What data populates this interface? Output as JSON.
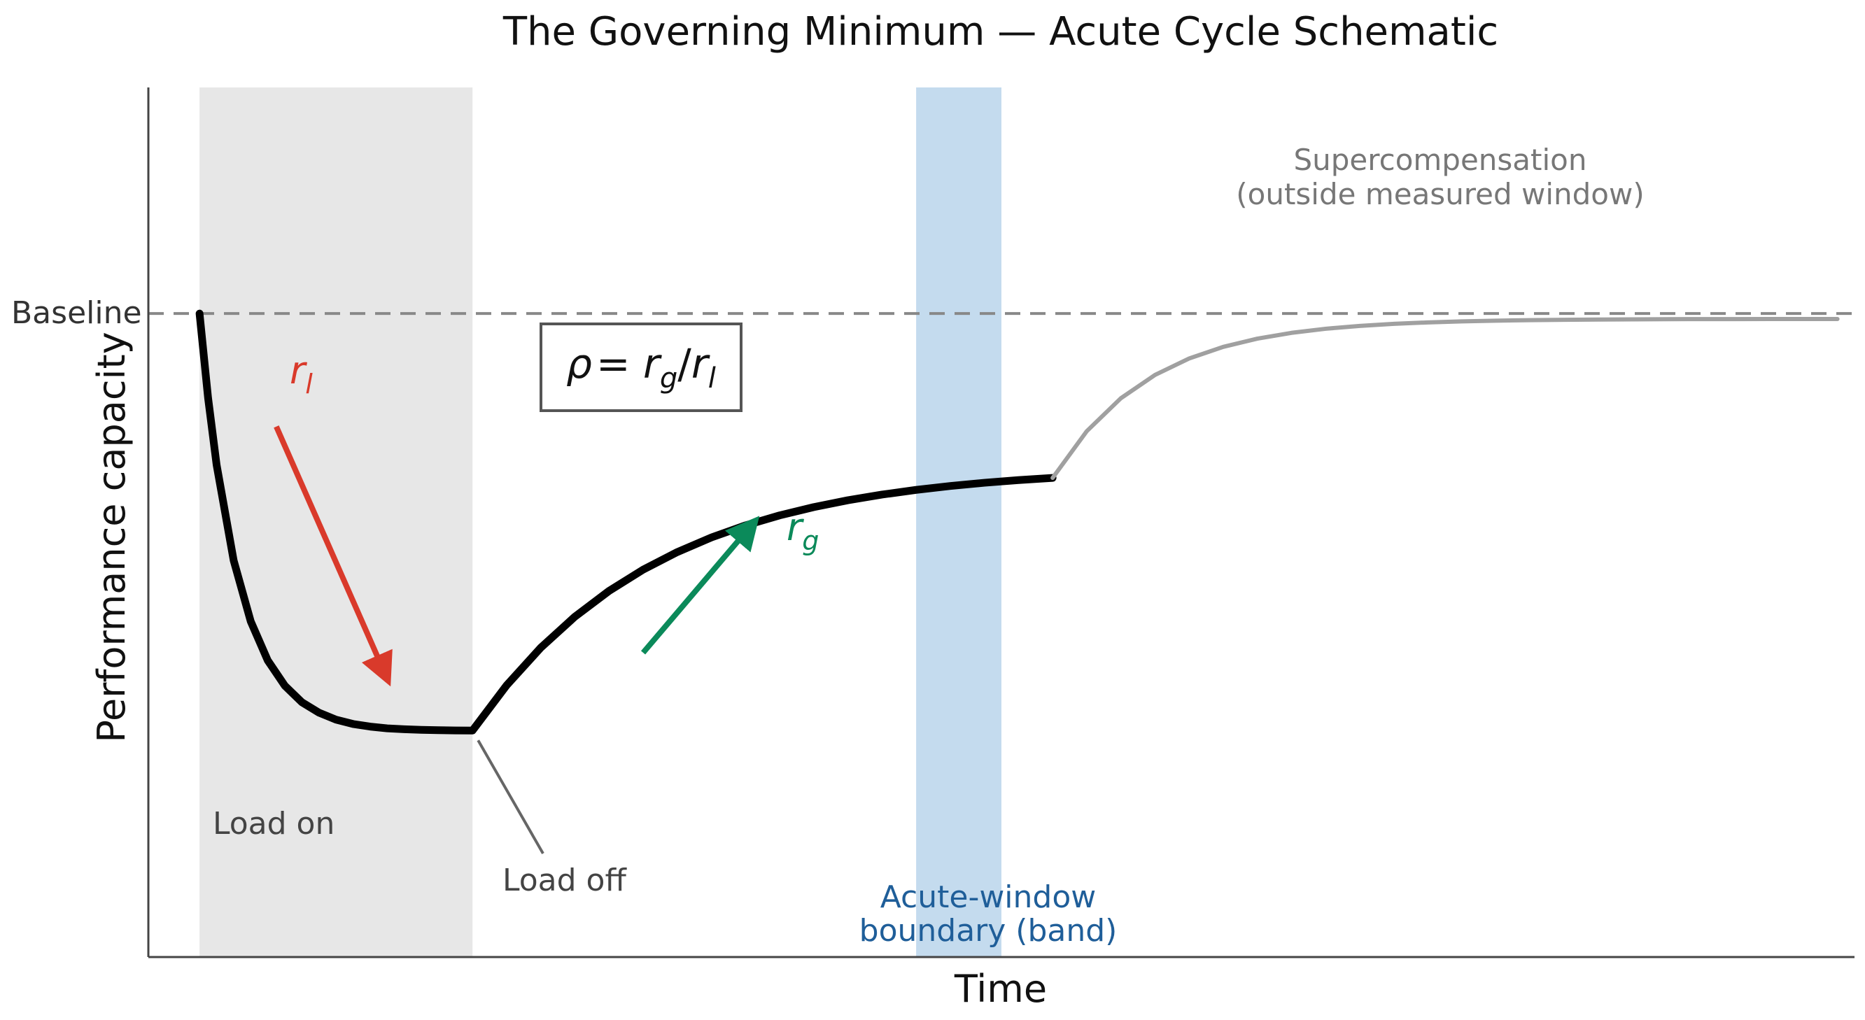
{
  "chart_data": {
    "type": "line",
    "title": "The Governing Minimum — Acute Cycle Schematic",
    "xlabel": "Time",
    "ylabel": "Performance capacity",
    "xlim": [
      0,
      10
    ],
    "ylim": [
      0,
      1
    ],
    "grid": false,
    "legend": "none",
    "baseline": {
      "y": 0.74,
      "label": "Baseline",
      "style": "dashed",
      "color": "#888888"
    },
    "regions": [
      {
        "name": "load-on",
        "x": [
          0.3,
          1.9
        ],
        "label": "Load on",
        "color": "#e7e7e7"
      },
      {
        "name": "acute-window",
        "x": [
          4.5,
          5.0
        ],
        "label": "Acute-window\nboundary (band)",
        "color": "#c4dbee",
        "label_color": "#1f5e99"
      }
    ],
    "series": [
      {
        "role": "measured",
        "color": "#000000",
        "x": [
          0.3,
          0.35,
          0.4,
          0.5,
          0.6,
          0.7,
          0.8,
          0.9,
          1.0,
          1.1,
          1.2,
          1.3,
          1.4,
          1.5,
          1.6,
          1.7,
          1.8,
          1.9,
          2.1,
          2.3,
          2.5,
          2.7,
          2.9,
          3.1,
          3.3,
          3.5,
          3.7,
          3.9,
          4.1,
          4.3,
          4.5,
          4.7,
          4.9,
          5.1,
          5.3
        ],
        "y": [
          0.74,
          0.643,
          0.566,
          0.456,
          0.386,
          0.341,
          0.312,
          0.293,
          0.281,
          0.273,
          0.268,
          0.265,
          0.263,
          0.262,
          0.2613,
          0.2609,
          0.2606,
          0.2605,
          0.3125,
          0.3557,
          0.3914,
          0.421,
          0.4455,
          0.4657,
          0.4825,
          0.4964,
          0.5079,
          0.5174,
          0.5253,
          0.5318,
          0.5372,
          0.5417,
          0.5454,
          0.5485,
          0.551
        ]
      },
      {
        "role": "supercompensation",
        "color": "#a0a0a0",
        "x": [
          5.3,
          5.5,
          5.7,
          5.9,
          6.1,
          6.3,
          6.5,
          6.7,
          6.9,
          7.1,
          7.3,
          7.5,
          7.7,
          7.9,
          8.1,
          8.3,
          8.5,
          8.7,
          8.9,
          9.1,
          9.3,
          9.5,
          9.7,
          9.9
        ],
        "y": [
          0.551,
          0.6047,
          0.6426,
          0.6694,
          0.6883,
          0.7017,
          0.7111,
          0.7178,
          0.7225,
          0.7258,
          0.7282,
          0.7298,
          0.731,
          0.7318,
          0.7324,
          0.7328,
          0.7331,
          0.7333,
          0.7335,
          0.7336,
          0.7336,
          0.7337,
          0.7337,
          0.7337
        ]
      }
    ],
    "annotations": {
      "formula": {
        "rho": "ρ",
        "equals": "= ",
        "r": "r",
        "g": "g",
        "slash": "/",
        "l": "l"
      },
      "rl": {
        "r": "r",
        "sub": "l",
        "color": "#d93a2b",
        "arrow_from": [
          0.75,
          0.61
        ],
        "arrow_to": [
          1.4,
          0.32
        ]
      },
      "rg": {
        "r": "r",
        "sub": "g",
        "color": "#0b8a5a",
        "arrow_from": [
          2.9,
          0.35
        ],
        "arrow_to": [
          3.55,
          0.5
        ]
      },
      "load_off": {
        "text": "Load off",
        "point": [
          1.9,
          0.2605
        ]
      },
      "supercompensation": {
        "line1": "Supercompensation",
        "line2": "(outside measured window)",
        "color": "#777777"
      }
    },
    "region_labels": {
      "load_on": "Load on",
      "acute_line1": "Acute-window",
      "acute_line2": "boundary (band)"
    }
  }
}
